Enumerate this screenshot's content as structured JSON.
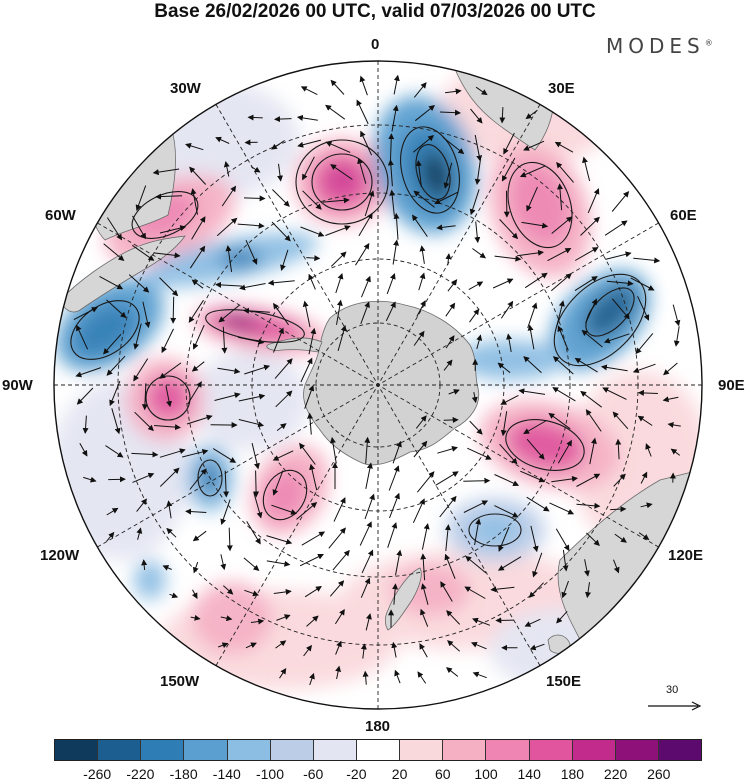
{
  "title": "Base 26/02/2026 00 UTC, valid 07/03/2026 00 UTC",
  "brand": "MODES",
  "brand_mark": "®",
  "longitude_labels": {
    "0": "0",
    "30E": "30E",
    "60E": "60E",
    "90E": "90E",
    "120E": "120E",
    "150E": "150E",
    "180": "180",
    "150W": "150W",
    "120W": "120W",
    "90W": "90W",
    "60W": "60W",
    "30W": "30W"
  },
  "reference_vector": {
    "label": "30"
  },
  "colorbar": {
    "colors": [
      "#0f3a5c",
      "#1b5e8f",
      "#2e7db5",
      "#5a9fd0",
      "#8cbde3",
      "#bccde8",
      "#e3e5f2",
      "#ffffff",
      "#fad9dd",
      "#f5b0c4",
      "#ee85b2",
      "#e0559e",
      "#c22a8c",
      "#8e1079",
      "#5d0a6e"
    ],
    "tick_labels": [
      "-260",
      "-220",
      "-180",
      "-140",
      "-100",
      "-60",
      "-20",
      "20",
      "60",
      "100",
      "140",
      "180",
      "220",
      "260"
    ]
  },
  "map_colors": {
    "land": "#d6d6d6",
    "antarctica": "#d2d2d2",
    "coast": "#6b6b6b",
    "grid": "#222222",
    "contour": "#1a1a1a",
    "arrow": "#111111"
  }
}
